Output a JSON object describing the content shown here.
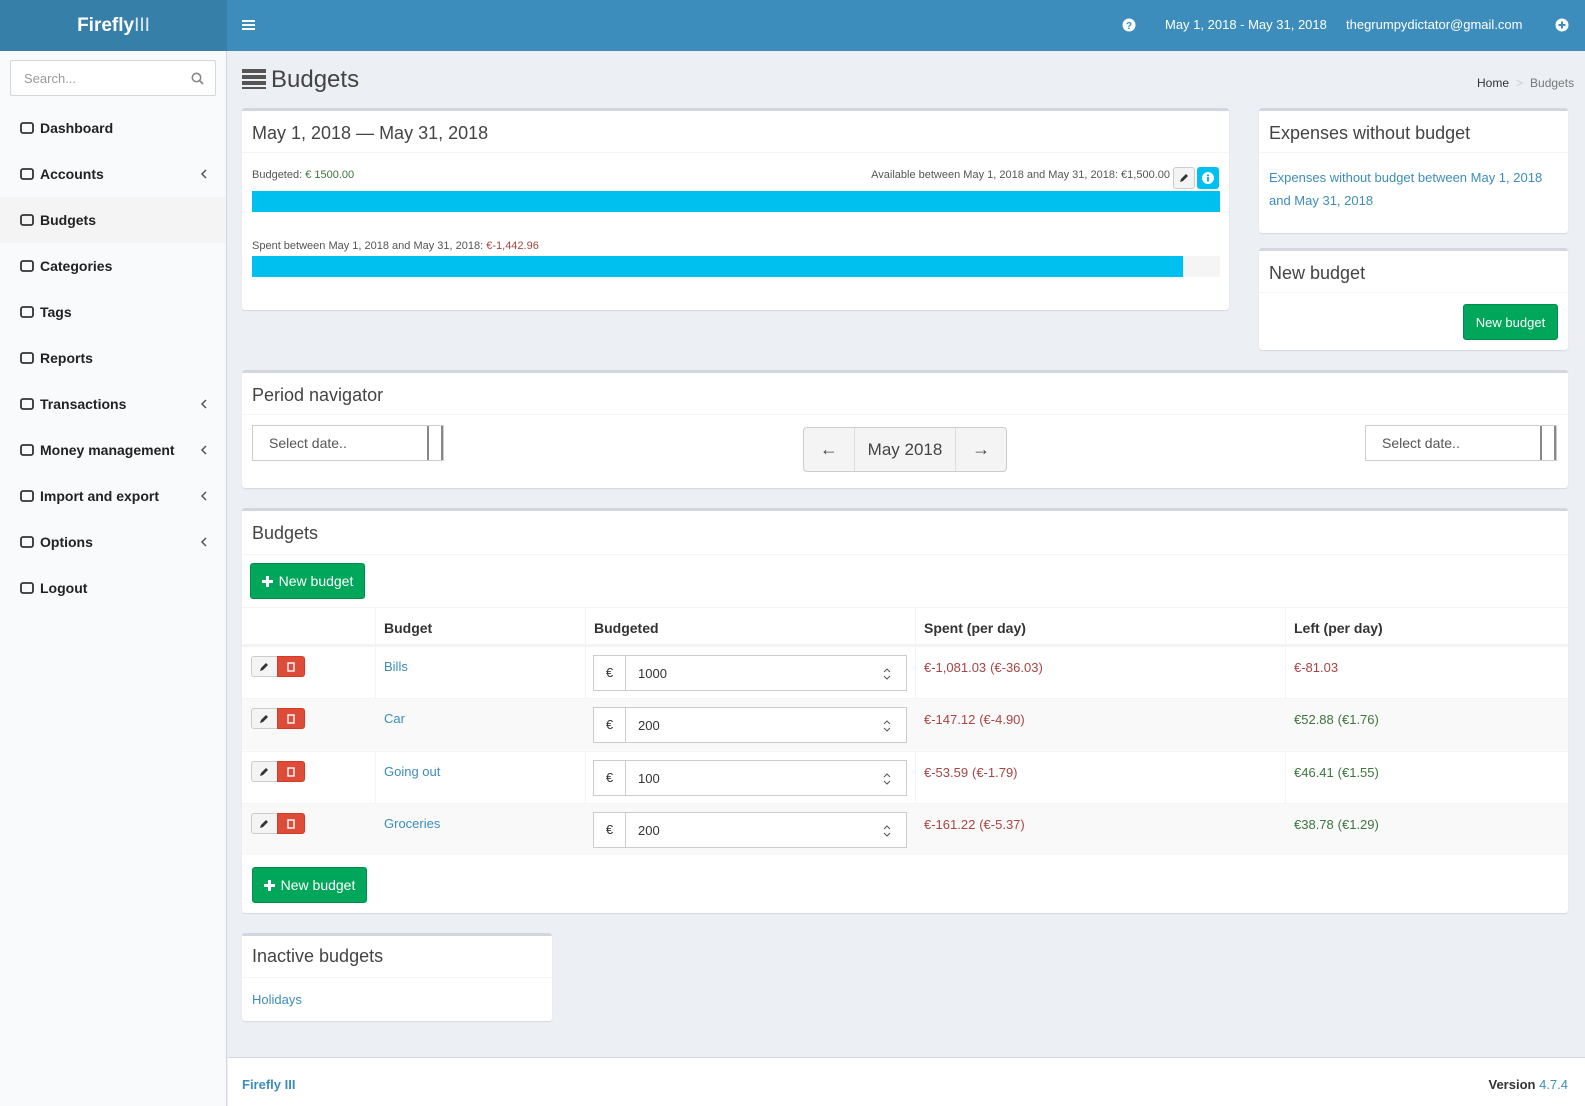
{
  "header": {
    "logo_bold": "Firefly",
    "logo_light": "III",
    "date_range": "May 1, 2018 - May 31, 2018",
    "email": "thegrumpydictator@gmail.com"
  },
  "sidebar": {
    "search_placeholder": "Search...",
    "active": 2,
    "items": [
      {
        "label": "Dashboard",
        "submenu": false
      },
      {
        "label": "Accounts",
        "submenu": true
      },
      {
        "label": "Budgets",
        "submenu": false
      },
      {
        "label": "Categories",
        "submenu": false
      },
      {
        "label": "Tags",
        "submenu": false
      },
      {
        "label": "Reports",
        "submenu": false
      },
      {
        "label": "Transactions",
        "submenu": true
      },
      {
        "label": "Money management",
        "submenu": true
      },
      {
        "label": "Import and export",
        "submenu": true
      },
      {
        "label": "Options",
        "submenu": true
      },
      {
        "label": "Logout",
        "submenu": false
      }
    ]
  },
  "page": {
    "title": "Budgets",
    "breadcrumb": [
      "Home",
      "Budgets"
    ]
  },
  "summary": {
    "title": "May 1, 2018 — May 31, 2018",
    "budgeted_label": "Budgeted:",
    "budgeted_value": "€ 1500.00",
    "available_text": "Available between May 1, 2018 and May 31, 2018: €1,500.00",
    "spent_label": "Spent between May 1, 2018 and May 31, 2018:",
    "spent_value": "€-1,442.96"
  },
  "expenses_box": {
    "title": "Expenses without budget",
    "link": "Expenses without budget between May 1, 2018 and May 31, 2018"
  },
  "new_budget_box": {
    "title": "New budget",
    "button": "New budget"
  },
  "period_navigator": {
    "title": "Period navigator",
    "select_left": "Select date..",
    "prev": "←",
    "current": "May 2018",
    "next": "→",
    "select_right": "Select date.."
  },
  "budgets": {
    "title": "Budgets",
    "button_top": "New budget",
    "button_bottom": "New budget",
    "columns": [
      "Budget",
      "Budgeted",
      "Spent (per day)",
      "Left (per day)"
    ],
    "rows": [
      {
        "name": "Bills",
        "currency": "€",
        "budgeted": "1000",
        "spent": "€-1,081.03",
        "spent_per_day": "(€-36.03)",
        "left": "€-81.03"
      },
      {
        "name": "Car",
        "currency": "€",
        "budgeted": "200",
        "spent": "€-147.12",
        "spent_per_day": "(€-4.90)",
        "left": "€52.88",
        "left_per_day": "(€1.76)"
      },
      {
        "name": "Going out",
        "currency": "€",
        "budgeted": "100",
        "spent": "€-53.59",
        "spent_per_day": "(€-1.79)",
        "left": "€46.41",
        "left_per_day": "(€1.55)"
      },
      {
        "name": "Groceries",
        "currency": "€",
        "budgeted": "200",
        "spent": "€-161.22",
        "spent_per_day": "(€-5.37)",
        "left": "€38.78",
        "left_per_day": "(€1.29)"
      }
    ]
  },
  "inactive": {
    "title": "Inactive budgets",
    "items": [
      "Holidays"
    ]
  },
  "footer": {
    "brand": "Firefly III",
    "version_label": "Version",
    "version": "4.7.4"
  }
}
